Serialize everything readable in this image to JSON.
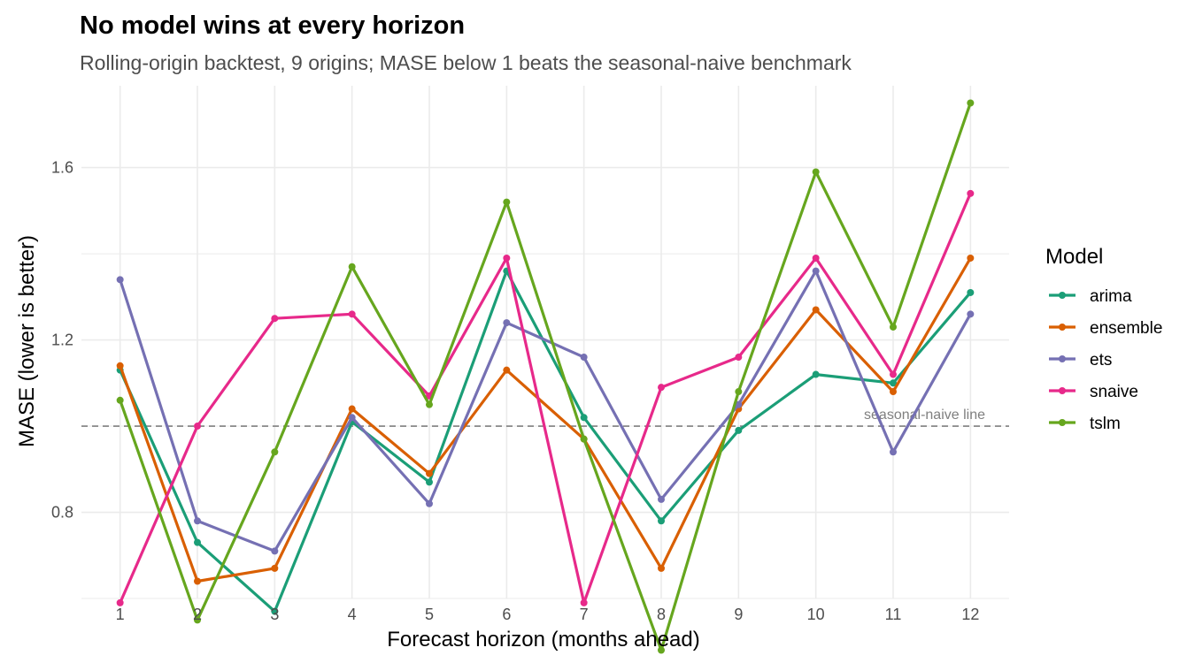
{
  "chart_data": {
    "type": "line",
    "title": "No model wins at every horizon",
    "subtitle": "Rolling-origin backtest, 9 origins; MASE below 1 beats the seasonal-naive benchmark",
    "xlabel": "Forecast horizon (months ahead)",
    "ylabel": "MASE (lower is better)",
    "x": [
      1,
      2,
      3,
      4,
      5,
      6,
      7,
      8,
      9,
      10,
      11,
      12
    ],
    "xlim": [
      0.5,
      12.5
    ],
    "ylim": [
      0.6,
      1.79
    ],
    "y_ticks": [
      0.8,
      1.2,
      1.6
    ],
    "grid": true,
    "legend_title": "Model",
    "legend_position": "right",
    "series": [
      {
        "name": "arima",
        "color": "#1b9e77",
        "values": [
          1.13,
          0.73,
          0.57,
          1.01,
          0.87,
          1.36,
          1.02,
          0.78,
          0.99,
          1.12,
          1.1,
          1.31
        ]
      },
      {
        "name": "ensemble",
        "color": "#d95f02",
        "values": [
          1.14,
          0.64,
          0.67,
          1.04,
          0.89,
          1.13,
          0.97,
          0.67,
          1.04,
          1.27,
          1.08,
          1.39
        ]
      },
      {
        "name": "ets",
        "color": "#7570b3",
        "values": [
          1.34,
          0.78,
          0.71,
          1.02,
          0.82,
          1.24,
          1.16,
          0.83,
          1.05,
          1.36,
          0.94,
          1.26
        ]
      },
      {
        "name": "snaive",
        "color": "#e7298a",
        "values": [
          0.59,
          1.0,
          1.25,
          1.26,
          1.07,
          1.39,
          0.59,
          1.09,
          1.16,
          1.39,
          1.12,
          1.54
        ]
      },
      {
        "name": "tslm",
        "color": "#66a61e",
        "values": [
          1.06,
          0.55,
          0.94,
          1.37,
          1.05,
          1.52,
          0.97,
          0.48,
          1.08,
          1.59,
          1.23,
          1.75
        ]
      }
    ],
    "reference_line": {
      "y": 1.0,
      "label": "seasonal-naive line",
      "color": "#7f7f7f"
    }
  }
}
